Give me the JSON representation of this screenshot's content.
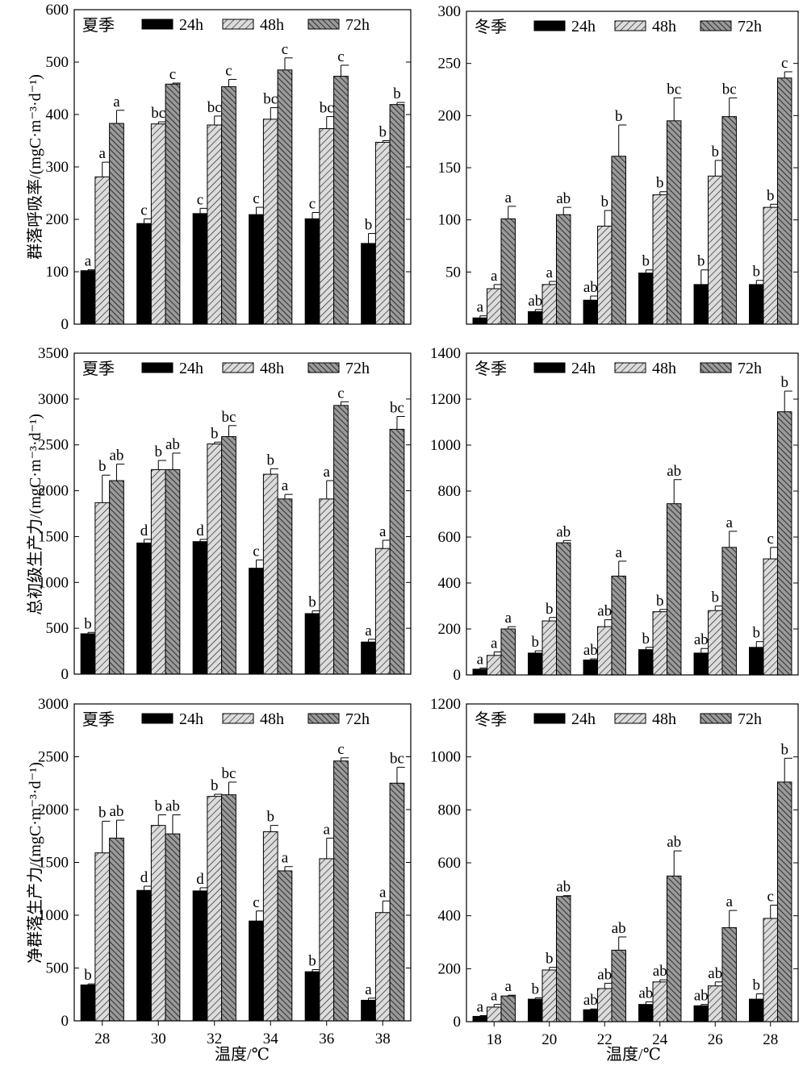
{
  "figure": {
    "ylabels": [
      "群落呼吸率/(mgC·m⁻³·d⁻¹)",
      "总初级生产力/(mgC·m⁻³·d⁻¹)",
      "净群落生产力/(mgC·m⁻³·d⁻¹)"
    ],
    "xlabels": [
      "温度/℃",
      "温度/℃"
    ],
    "legend": [
      "24h",
      "48h",
      "72h"
    ]
  },
  "chart_data": [
    {
      "type": "bar",
      "season": "夏季",
      "categories": [
        "28",
        "30",
        "32",
        "34",
        "36",
        "38"
      ],
      "ylim": [
        0,
        600
      ],
      "yticks": [
        0,
        100,
        200,
        300,
        400,
        500,
        600
      ],
      "series": [
        {
          "name": "24h",
          "values": [
            102,
            192,
            211,
            209,
            201,
            154
          ],
          "errors": [
            2,
            9,
            10,
            14,
            12,
            19
          ],
          "labels": [
            "a",
            "c",
            "c",
            "c",
            "c",
            "b"
          ]
        },
        {
          "name": "48h",
          "values": [
            281,
            382,
            380,
            391,
            373,
            347
          ],
          "errors": [
            28,
            4,
            17,
            22,
            23,
            3
          ],
          "labels": [
            "a",
            "bc",
            "bc",
            "bc",
            "bc",
            "b"
          ]
        },
        {
          "name": "72h",
          "values": [
            383,
            458,
            453,
            485,
            473,
            419
          ],
          "errors": [
            25,
            2,
            14,
            23,
            21,
            4
          ],
          "labels": [
            "a",
            "c",
            "c",
            "c",
            "c",
            "b"
          ]
        }
      ]
    },
    {
      "type": "bar",
      "season": "冬季",
      "categories": [
        "18",
        "20",
        "22",
        "24",
        "26",
        "28"
      ],
      "ylim": [
        0,
        300
      ],
      "yticks": [
        50,
        100,
        150,
        200,
        250,
        300
      ],
      "series": [
        {
          "name": "24h",
          "values": [
            6,
            12,
            23,
            49,
            38,
            38
          ],
          "errors": [
            2,
            2,
            4,
            3,
            14,
            4
          ],
          "labels": [
            "a",
            "ab",
            "ab",
            "b",
            "b",
            "b"
          ]
        },
        {
          "name": "48h",
          "values": [
            34,
            38,
            94,
            124,
            142,
            112
          ],
          "errors": [
            4,
            3,
            15,
            3,
            15,
            3
          ],
          "labels": [
            "a",
            "a",
            "b",
            "b",
            "b",
            "b"
          ]
        },
        {
          "name": "72h",
          "values": [
            101,
            105,
            161,
            195,
            199,
            236
          ],
          "errors": [
            12,
            7,
            30,
            22,
            18,
            6
          ],
          "labels": [
            "a",
            "ab",
            "b",
            "bc",
            "bc",
            "c"
          ]
        }
      ]
    },
    {
      "type": "bar",
      "season": "夏季",
      "categories": [
        "28",
        "30",
        "32",
        "34",
        "36",
        "38"
      ],
      "ylim": [
        0,
        3500
      ],
      "yticks": [
        0,
        500,
        1000,
        1500,
        2000,
        2500,
        3000,
        3500
      ],
      "series": [
        {
          "name": "24h",
          "values": [
            440,
            1430,
            1445,
            1155,
            660,
            350
          ],
          "errors": [
            15,
            40,
            25,
            90,
            30,
            30
          ],
          "labels": [
            "b",
            "d",
            "d",
            "c",
            "b",
            "a"
          ]
        },
        {
          "name": "48h",
          "values": [
            1870,
            2230,
            2510,
            2180,
            1910,
            1370
          ],
          "errors": [
            300,
            100,
            20,
            60,
            200,
            90
          ],
          "labels": [
            "b",
            "b",
            "b",
            "b",
            "a",
            "a"
          ]
        },
        {
          "name": "72h",
          "values": [
            2110,
            2230,
            2590,
            1910,
            2930,
            2670
          ],
          "errors": [
            180,
            180,
            120,
            50,
            40,
            140
          ],
          "labels": [
            "ab",
            "ab",
            "bc",
            "a",
            "c",
            "bc"
          ]
        }
      ]
    },
    {
      "type": "bar",
      "season": "冬季",
      "categories": [
        "18",
        "20",
        "22",
        "24",
        "26",
        "28"
      ],
      "ylim": [
        0,
        1400
      ],
      "yticks": [
        0,
        200,
        400,
        600,
        800,
        1000,
        1200,
        1400
      ],
      "series": [
        {
          "name": "24h",
          "values": [
            25,
            95,
            65,
            110,
            95,
            120
          ],
          "errors": [
            5,
            10,
            5,
            10,
            20,
            25
          ],
          "labels": [
            "a",
            "b",
            "ab",
            "b",
            "ab",
            "b"
          ]
        },
        {
          "name": "48h",
          "values": [
            85,
            235,
            210,
            275,
            280,
            505
          ],
          "errors": [
            15,
            15,
            30,
            10,
            20,
            50
          ],
          "labels": [
            "a",
            "b",
            "ab",
            "b",
            "b",
            "c"
          ]
        },
        {
          "name": "72h",
          "values": [
            200,
            575,
            430,
            745,
            555,
            1145
          ],
          "errors": [
            10,
            10,
            65,
            105,
            70,
            90
          ],
          "labels": [
            "a",
            "ab",
            "a",
            "ab",
            "a",
            "b"
          ]
        }
      ]
    },
    {
      "type": "bar",
      "season": "夏季",
      "categories": [
        "28",
        "30",
        "32",
        "34",
        "36",
        "38"
      ],
      "ylim": [
        0,
        3000
      ],
      "yticks": [
        0,
        500,
        1000,
        1500,
        2000,
        2500,
        3000
      ],
      "series": [
        {
          "name": "24h",
          "values": [
            340,
            1235,
            1230,
            945,
            465,
            195
          ],
          "errors": [
            10,
            40,
            30,
            95,
            20,
            20
          ],
          "labels": [
            "b",
            "d",
            "d",
            "c",
            "b",
            "a"
          ]
        },
        {
          "name": "48h",
          "values": [
            1590,
            1850,
            2125,
            1790,
            1535,
            1025
          ],
          "errors": [
            300,
            100,
            20,
            60,
            195,
            110
          ],
          "labels": [
            "b",
            "b",
            "b",
            "b",
            "a",
            "a"
          ]
        },
        {
          "name": "72h",
          "values": [
            1730,
            1770,
            2140,
            1420,
            2460,
            2250
          ],
          "errors": [
            170,
            180,
            120,
            40,
            30,
            150
          ],
          "labels": [
            "ab",
            "ab",
            "bc",
            "a",
            "c",
            "bc"
          ]
        }
      ]
    },
    {
      "type": "bar",
      "season": "冬季",
      "categories": [
        "18",
        "20",
        "22",
        "24",
        "26",
        "28"
      ],
      "ylim": [
        0,
        1200
      ],
      "yticks": [
        0,
        200,
        400,
        600,
        800,
        1000,
        1200
      ],
      "series": [
        {
          "name": "24h",
          "values": [
            20,
            85,
            45,
            65,
            60,
            85
          ],
          "errors": [
            3,
            5,
            3,
            10,
            5,
            20
          ],
          "labels": [
            "a",
            "b",
            "ab",
            "ab",
            "ab",
            "b"
          ]
        },
        {
          "name": "48h",
          "values": [
            55,
            195,
            125,
            150,
            135,
            390
          ],
          "errors": [
            10,
            10,
            20,
            8,
            15,
            50
          ],
          "labels": [
            "a",
            "b",
            "ab",
            "ab",
            "ab",
            "c"
          ]
        },
        {
          "name": "72h",
          "values": [
            97,
            473,
            270,
            550,
            355,
            905
          ],
          "errors": [
            3,
            3,
            50,
            95,
            65,
            90
          ],
          "labels": [
            "a",
            "ab",
            "ab",
            "ab",
            "a",
            "b"
          ]
        }
      ]
    }
  ]
}
